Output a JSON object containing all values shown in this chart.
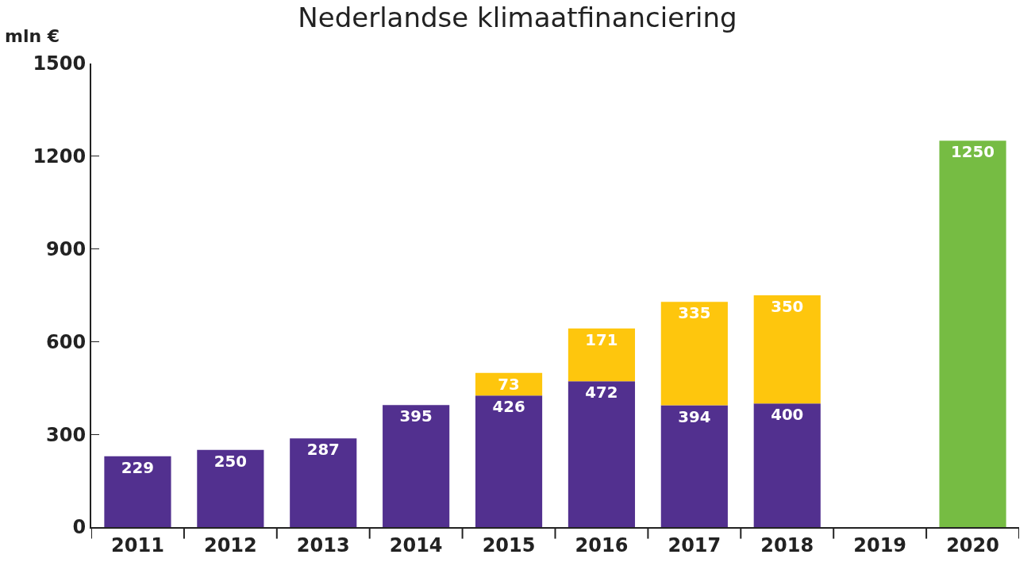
{
  "chart_data": {
    "type": "bar",
    "title": "Nederlandse klimaatfinanciering",
    "ylabel": "mln €",
    "categories": [
      "2011",
      "2012",
      "2013",
      "2014",
      "2015",
      "2016",
      "2017",
      "2018",
      "2019",
      "2020"
    ],
    "series": [
      {
        "color": "#52308f",
        "values": [
          229,
          250,
          287,
          395,
          426,
          472,
          394,
          400,
          null,
          null
        ]
      },
      {
        "color": "#fec60d",
        "values": [
          null,
          null,
          null,
          null,
          73,
          171,
          335,
          350,
          null,
          null
        ]
      },
      {
        "color": "#76bc43",
        "values": [
          null,
          null,
          null,
          null,
          null,
          null,
          null,
          null,
          null,
          1250
        ]
      }
    ],
    "stacked": true,
    "data_labels": true,
    "ylim": [
      0,
      1500
    ],
    "yticks": [
      0,
      300,
      600,
      900,
      1200,
      1500
    ]
  }
}
